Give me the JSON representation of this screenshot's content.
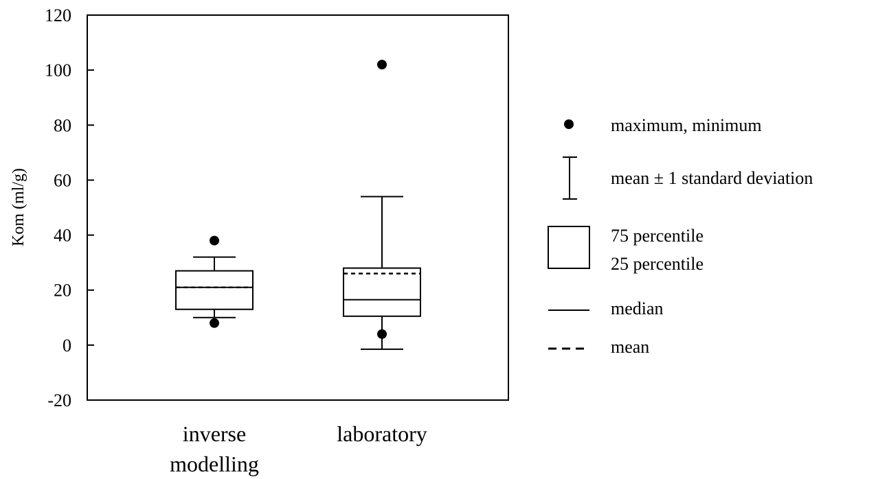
{
  "chart_data": {
    "type": "box",
    "ylabel": "Kom (ml/g)",
    "ylim": [
      -20,
      120
    ],
    "yticks": [
      -20,
      0,
      20,
      40,
      60,
      80,
      100,
      120
    ],
    "grid": false,
    "legend_position": "right",
    "categories": [
      {
        "lines": [
          "inverse",
          "modelling"
        ]
      },
      {
        "lines": [
          "laboratory"
        ]
      }
    ],
    "boxes": [
      {
        "category": "inverse modelling",
        "q1": 13,
        "q3": 27,
        "median": 21,
        "mean": 21,
        "mean_minus_sd": 10,
        "mean_plus_sd": 32,
        "min": 8,
        "max": 38
      },
      {
        "category": "laboratory",
        "q1": 10.5,
        "q3": 28,
        "median": 16.5,
        "mean": 26,
        "mean_minus_sd": -1.5,
        "mean_plus_sd": 54,
        "min": 4,
        "max": 102
      }
    ],
    "legend": {
      "max_min": "maximum, minimum",
      "sd": "mean ± 1 standard deviation",
      "box_top": "75 percentile",
      "box_bottom": "25 percentile",
      "median": "median",
      "mean": "mean"
    }
  }
}
